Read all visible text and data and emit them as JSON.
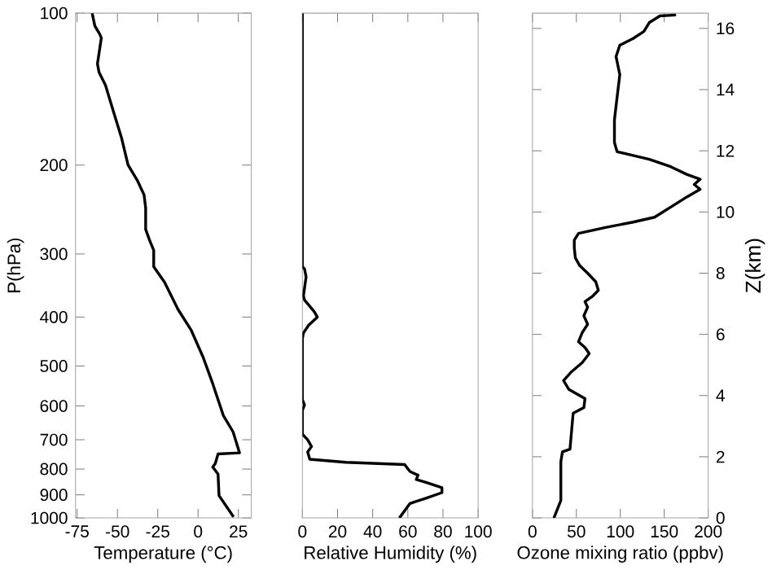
{
  "chart_data": [
    {
      "type": "line",
      "xlabel": "Temperature (°C)",
      "ylabel": "P(hPa)",
      "xlim": [
        -76,
        33
      ],
      "xticks": [
        -75,
        -50,
        -25,
        0,
        25
      ],
      "ylim": [
        1000,
        100
      ],
      "yticks": [
        100,
        200,
        300,
        400,
        500,
        600,
        700,
        800,
        900,
        1000
      ],
      "log": "y",
      "grid": false,
      "series": [
        {
          "color": "#000000",
          "x": [
            -65.7,
            -64,
            -61,
            -60,
            -62.4,
            -61.4,
            -57.4,
            -52.4,
            -47.4,
            -43.4,
            -37.5,
            -33.5,
            -32.5,
            -32.5,
            -30.2,
            -27.5,
            -27.5,
            -20.8,
            -12.5,
            -4.2,
            3.1,
            9.1,
            15.7,
            21.7,
            25.7,
            12.4,
            10.7,
            9.1,
            12.4,
            13,
            22
          ],
          "values": [
            100,
            106,
            110,
            112,
            126,
            131,
            139,
            157,
            177,
            200,
            215,
            229,
            243,
            268,
            281,
            295,
            318,
            341,
            386,
            425,
            480,
            542,
            627,
            675,
            743,
            747,
            780,
            793,
            819,
            903,
            995
          ]
        }
      ]
    },
    {
      "type": "line",
      "xlabel": "Relative Humidity (%)",
      "xlim": [
        0,
        100
      ],
      "xticks": [
        0,
        20,
        40,
        60,
        80,
        100
      ],
      "ylim": [
        1000,
        100
      ],
      "log": "y",
      "grid": false,
      "tick_labels": "x",
      "series": [
        {
          "color": "#000000",
          "x": [
            0,
            0,
            1.2,
            2.1,
            0.6,
            1.2,
            6.7,
            8.5,
            3.6,
            0.6,
            0,
            0,
            1.2,
            0,
            0,
            3,
            5.2,
            3,
            4.2,
            24.8,
            58.2,
            61.2,
            65.8,
            64.8,
            70.3,
            79.4,
            79.4,
            70.3,
            61.2,
            55.2
          ],
          "values": [
            100,
            318,
            321,
            333,
            363,
            370,
            390,
            400,
            415,
            430,
            441,
            583,
            597,
            612,
            682,
            700,
            722,
            740,
            765,
            776,
            784,
            809,
            823,
            839,
            850,
            871,
            891,
            914,
            936,
            1000
          ]
        }
      ]
    },
    {
      "type": "line",
      "xlabel": "Ozone mixing ratio (ppbv)",
      "y2label": "Z(km)",
      "xlim": [
        0,
        200
      ],
      "xticks": [
        0,
        50,
        100,
        150,
        200
      ],
      "y2lim": [
        0,
        16.5
      ],
      "grid": false,
      "y2ticks": [
        0,
        2,
        4,
        6,
        8,
        10,
        12,
        14,
        16
      ],
      "series": [
        {
          "color": "#000000",
          "axis": "y2",
          "x": [
            24.4,
            32.3,
            32.3,
            34.1,
            42.7,
            46.3,
            58.5,
            59.8,
            41.5,
            35.4,
            44.5,
            56.7,
            64.6,
            59.8,
            52.4,
            56.7,
            62.8,
            58.5,
            62.8,
            59.8,
            68.9,
            75,
            72,
            62.8,
            53.7,
            48.8,
            47.6,
            47.6,
            52.4,
            84.1,
            114.6,
            139,
            157.3,
            175.6,
            190.8,
            184.1,
            190.8,
            175.6,
            157.3,
            132.9,
            108.5,
            96.3,
            93.3,
            93.3,
            96.3,
            99.4,
            95.1,
            99.4,
            114.6,
            126.8,
            132.9,
            145.1,
            163.4
          ],
          "values": [
            0,
            0.57,
            1.84,
            2.16,
            2.25,
            3.42,
            3.61,
            3.9,
            4.2,
            4.49,
            4.78,
            5.08,
            5.37,
            5.57,
            5.76,
            6.06,
            6.33,
            6.61,
            6.89,
            7.07,
            7.26,
            7.44,
            7.72,
            8,
            8.25,
            8.5,
            8.83,
            9.08,
            9.3,
            9.5,
            9.67,
            9.83,
            10.16,
            10.49,
            10.74,
            10.9,
            11.07,
            11.23,
            11.48,
            11.72,
            11.89,
            11.97,
            12.27,
            13.01,
            13.75,
            14.49,
            15.08,
            15.45,
            15.67,
            15.9,
            16.19,
            16.41,
            16.44
          ]
        }
      ]
    }
  ]
}
